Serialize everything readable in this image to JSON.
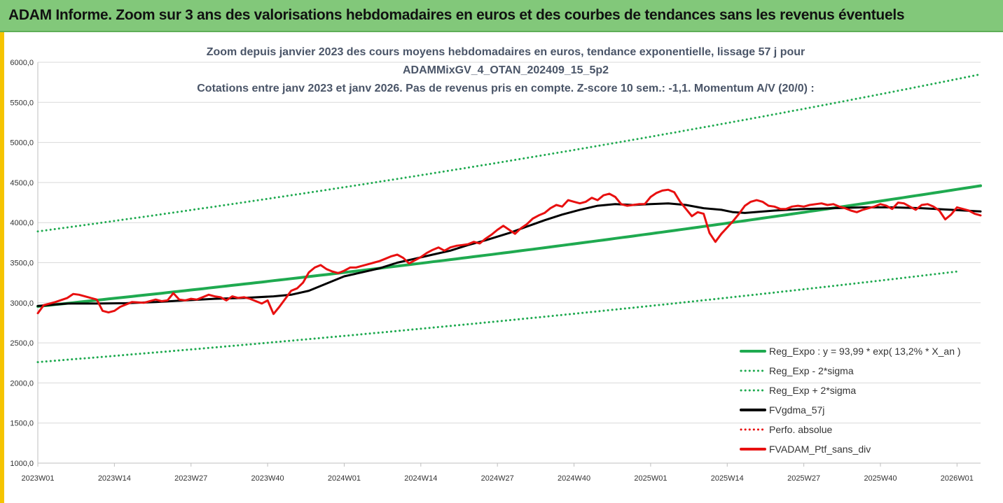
{
  "banner": {
    "title": "ADAM Informe. Zoom sur 3 ans des valorisations hebdomadaires en euros et des courbes de tendances sans les revenus éventuels"
  },
  "colors": {
    "banner": "#82c87a",
    "accent_yellow": "#f5c400",
    "green": "#1faa50",
    "black": "#000000",
    "red": "#e81010",
    "grid": "#d9d9d9"
  },
  "chart_data": {
    "type": "line",
    "title_lines": [
      "Zoom depuis janvier 2023 des cours moyens hebdomadaires  en euros, tendance exponentielle, lissage 57 j pour",
      "ADAMMixGV_4_OTAN_202409_15_5p2",
      "Cotations entre janv 2023 et janv 2026. Pas de revenus pris en compte. Z-score 10 sem.: -1,1. Momentum A/V (20/0) :"
    ],
    "xlabel": "",
    "ylabel": "",
    "ylim": [
      1000,
      6000
    ],
    "ytick_labels": [
      "1000,0",
      "1500,0",
      "2000,0",
      "2500,0",
      "3000,0",
      "3500,0",
      "4000,0",
      "4500,0",
      "5000,0",
      "5500,0",
      "6000,0"
    ],
    "ytick_values": [
      1000,
      1500,
      2000,
      2500,
      3000,
      3500,
      4000,
      4500,
      5000,
      5500,
      6000
    ],
    "xtick_labels": [
      "2023W01",
      "2023W14",
      "2023W27",
      "2023W40",
      "2024W01",
      "2024W14",
      "2024W27",
      "2024W40",
      "2025W01",
      "2025W14",
      "2025W27",
      "2025W40",
      "2026W01"
    ],
    "xtick_weeks": [
      0,
      13,
      26,
      39,
      52,
      65,
      78,
      91,
      104,
      117,
      130,
      143,
      156
    ],
    "x_range_weeks": [
      0,
      160
    ],
    "grid": "horizontal",
    "legend_position": "bottom-right",
    "series": [
      {
        "name": "Reg_Expo : y = 93,99 * exp( 13,2% *  X_an )",
        "style": "solid",
        "color": "#1faa50",
        "x": [
          0,
          160
        ],
        "y": [
          2955,
          4460
        ],
        "curve": "exponential"
      },
      {
        "name": "Reg_Exp - 2*sigma",
        "style": "dotted",
        "color": "#1faa50",
        "x": [
          0,
          156
        ],
        "y": [
          2260,
          3390
        ],
        "curve": "exponential"
      },
      {
        "name": "Reg_Exp + 2*sigma",
        "style": "dotted",
        "color": "#1faa50",
        "x": [
          0,
          160
        ],
        "y": [
          3890,
          5850
        ],
        "curve": "exponential"
      },
      {
        "name": "FVgdma_57j",
        "style": "solid",
        "color": "#000000",
        "x": [
          0,
          5,
          10,
          15,
          20,
          25,
          30,
          35,
          40,
          43,
          46,
          50,
          52,
          55,
          58,
          61,
          64,
          67,
          70,
          73,
          76,
          80,
          83,
          86,
          89,
          92,
          95,
          98,
          101,
          104,
          107,
          110,
          113,
          116,
          118,
          120,
          125,
          130,
          135,
          140,
          145,
          150,
          155,
          160
        ],
        "y": [
          2960,
          2990,
          2990,
          2995,
          3010,
          3030,
          3050,
          3060,
          3080,
          3100,
          3150,
          3270,
          3330,
          3380,
          3430,
          3500,
          3550,
          3600,
          3650,
          3720,
          3780,
          3870,
          3950,
          4030,
          4100,
          4160,
          4210,
          4230,
          4220,
          4230,
          4240,
          4220,
          4180,
          4160,
          4130,
          4120,
          4150,
          4170,
          4180,
          4190,
          4190,
          4180,
          4160,
          4140
        ]
      },
      {
        "name": "Perfo. absolue",
        "style": "dotted",
        "color": "#e81010",
        "x": [],
        "y": []
      },
      {
        "name": "FVADAM_Ptf_sans_div",
        "style": "solid",
        "color": "#e81010",
        "x": [
          0,
          1,
          3,
          5,
          6,
          7,
          9,
          10,
          11,
          12,
          13,
          14,
          16,
          18,
          20,
          21,
          22,
          23,
          24,
          25,
          26,
          27,
          28,
          29,
          30,
          31,
          32,
          33,
          34,
          35,
          36,
          38,
          39,
          40,
          41,
          42,
          43,
          44,
          45,
          46,
          47,
          48,
          49,
          50,
          51,
          52,
          53,
          54,
          55,
          56,
          57,
          58,
          59,
          60,
          61,
          62,
          63,
          64,
          65,
          66,
          67,
          68,
          69,
          70,
          71,
          72,
          73,
          74,
          75,
          76,
          77,
          78,
          79,
          80,
          81,
          82,
          83,
          84,
          85,
          86,
          87,
          88,
          89,
          90,
          91,
          92,
          93,
          94,
          95,
          96,
          97,
          98,
          99,
          100,
          101,
          102,
          103,
          104,
          105,
          106,
          107,
          108,
          109,
          110,
          111,
          112,
          113,
          114,
          115,
          116,
          117,
          118,
          119,
          120,
          121,
          122,
          123,
          124,
          125,
          126,
          127,
          128,
          129,
          130,
          131,
          132,
          133,
          134,
          135,
          136,
          137,
          138,
          139,
          140,
          141,
          142,
          143,
          144,
          145,
          146,
          147,
          148,
          149,
          150,
          151,
          152,
          153,
          154,
          155,
          156,
          157,
          158,
          159,
          160
        ],
        "y": [
          2870,
          2970,
          3010,
          3060,
          3110,
          3100,
          3060,
          3040,
          2900,
          2880,
          2900,
          2950,
          3010,
          3000,
          3040,
          3020,
          3030,
          3120,
          3040,
          3030,
          3050,
          3040,
          3070,
          3100,
          3080,
          3070,
          3030,
          3080,
          3060,
          3070,
          3050,
          2990,
          3030,
          2860,
          2950,
          3050,
          3150,
          3180,
          3250,
          3380,
          3440,
          3470,
          3420,
          3390,
          3370,
          3400,
          3440,
          3440,
          3460,
          3480,
          3500,
          3520,
          3550,
          3580,
          3600,
          3560,
          3490,
          3530,
          3570,
          3620,
          3660,
          3690,
          3650,
          3690,
          3710,
          3720,
          3730,
          3760,
          3740,
          3800,
          3850,
          3910,
          3960,
          3910,
          3860,
          3930,
          3980,
          4050,
          4090,
          4120,
          4180,
          4220,
          4200,
          4280,
          4260,
          4240,
          4260,
          4310,
          4280,
          4340,
          4360,
          4320,
          4230,
          4210,
          4220,
          4230,
          4230,
          4320,
          4370,
          4400,
          4410,
          4380,
          4260,
          4170,
          4080,
          4130,
          4110,
          3870,
          3760,
          3860,
          3940,
          4020,
          4110,
          4210,
          4260,
          4280,
          4260,
          4210,
          4200,
          4170,
          4170,
          4200,
          4210,
          4200,
          4220,
          4230,
          4240,
          4220,
          4230,
          4200,
          4180,
          4150,
          4130,
          4160,
          4180,
          4200,
          4230,
          4210,
          4170,
          4250,
          4240,
          4200,
          4160,
          4220,
          4230,
          4200,
          4150,
          4040,
          4100,
          4190,
          4170,
          4150,
          4110,
          4090
        ]
      }
    ]
  }
}
